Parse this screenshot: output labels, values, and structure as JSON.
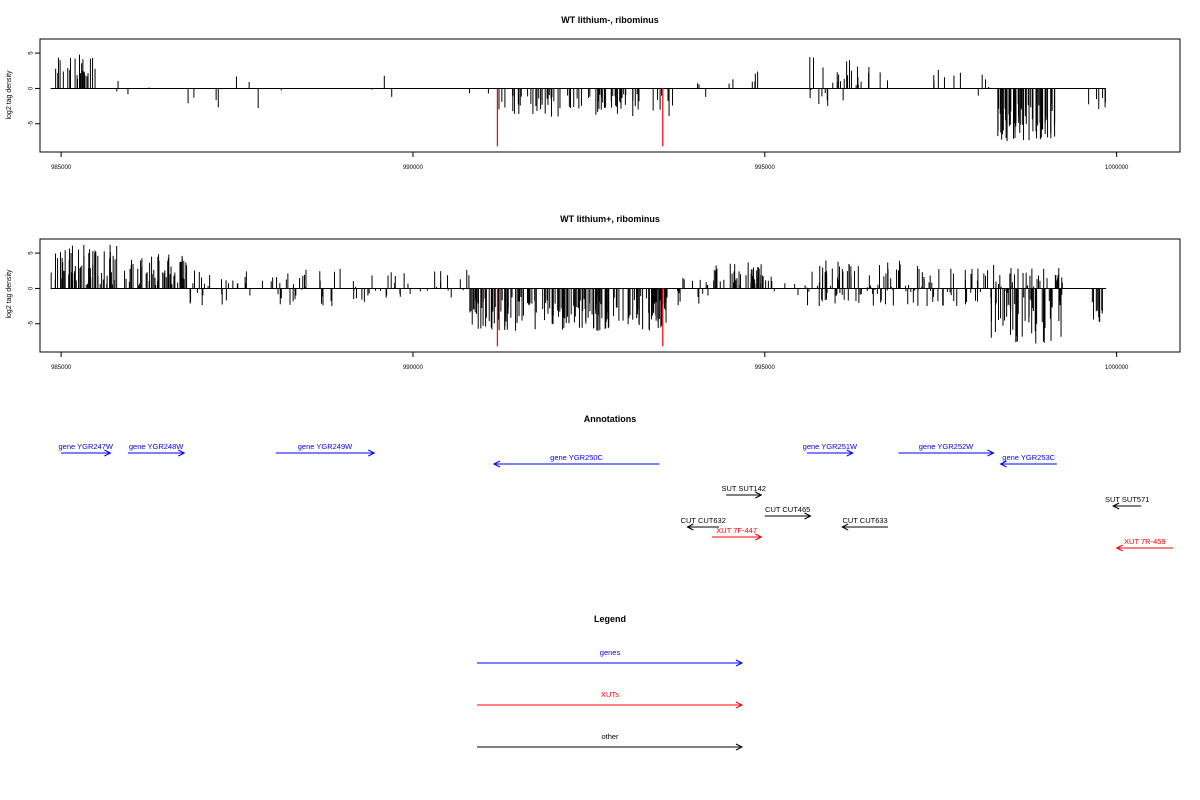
{
  "colors": {
    "genes": "#0000ff",
    "XUTs": "#ff0000",
    "other": "#000000",
    "bar": "#000000",
    "highlight": "#ff0000"
  },
  "chart_data": [
    {
      "type": "bar",
      "title": "WT lithium-, ribominus",
      "ylabel": "log2 tag density",
      "xlim": [
        984700,
        1000900
      ],
      "ylim": [
        -9,
        7
      ],
      "yticks": [
        5,
        0,
        -5
      ],
      "xticks": [
        985000,
        990000,
        995000,
        1000000
      ],
      "highlight_positions": [
        991200,
        993550
      ],
      "regions": [
        {
          "start": 984850,
          "end": 985500,
          "min": 1.0,
          "max": 4.8,
          "count": 26
        },
        {
          "start": 985600,
          "end": 986100,
          "min": -1.5,
          "max": 1.2,
          "count": 3
        },
        {
          "start": 986200,
          "end": 988600,
          "min": -2.8,
          "max": 2.5,
          "count": 10
        },
        {
          "start": 989300,
          "end": 989900,
          "min": -2.5,
          "max": 2.0,
          "count": 3
        },
        {
          "start": 990800,
          "end": 991100,
          "min": -1.2,
          "max": -0.4,
          "count": 2
        },
        {
          "start": 991200,
          "end": 993700,
          "min": -4.0,
          "max": -0.8,
          "count": 80
        },
        {
          "start": 994000,
          "end": 994200,
          "min": -2.0,
          "max": 1.0,
          "count": 3
        },
        {
          "start": 994400,
          "end": 995000,
          "min": 0.5,
          "max": 2.8,
          "count": 6
        },
        {
          "start": 995600,
          "end": 996500,
          "min": -2.5,
          "max": 4.5,
          "count": 28
        },
        {
          "start": 996600,
          "end": 997800,
          "min": 0.8,
          "max": 3.0,
          "count": 8
        },
        {
          "start": 997900,
          "end": 998200,
          "min": -1.2,
          "max": 2.0,
          "count": 5
        },
        {
          "start": 998300,
          "end": 999150,
          "min": -7.5,
          "max": -2.0,
          "count": 65
        },
        {
          "start": 999600,
          "end": 999850,
          "min": -3.0,
          "max": -1.0,
          "count": 6
        }
      ]
    },
    {
      "type": "bar",
      "title": "WT lithium+, ribominus",
      "ylabel": "log2 tag density",
      "xlim": [
        984700,
        1000900
      ],
      "ylim": [
        -9,
        7
      ],
      "yticks": [
        5,
        0,
        -5
      ],
      "xticks": [
        985000,
        990000,
        995000,
        1000000
      ],
      "highlight_positions": [
        991200,
        993550
      ],
      "regions": [
        {
          "start": 984850,
          "end": 985800,
          "min": 0.5,
          "max": 6.2,
          "count": 60
        },
        {
          "start": 985900,
          "end": 986800,
          "min": 0.3,
          "max": 5.0,
          "count": 55
        },
        {
          "start": 986800,
          "end": 989600,
          "min": -2.5,
          "max": 3.0,
          "count": 70
        },
        {
          "start": 989600,
          "end": 990800,
          "min": -1.5,
          "max": 2.8,
          "count": 25
        },
        {
          "start": 990800,
          "end": 993700,
          "min": -6.0,
          "max": -1.0,
          "count": 190
        },
        {
          "start": 993700,
          "end": 994200,
          "min": -2.5,
          "max": 1.5,
          "count": 15
        },
        {
          "start": 994200,
          "end": 995100,
          "min": 0.5,
          "max": 3.8,
          "count": 45
        },
        {
          "start": 995100,
          "end": 995600,
          "min": -1.0,
          "max": 1.0,
          "count": 6
        },
        {
          "start": 995600,
          "end": 997200,
          "min": -2.5,
          "max": 4.0,
          "count": 90
        },
        {
          "start": 997200,
          "end": 998200,
          "min": -2.5,
          "max": 3.0,
          "count": 40
        },
        {
          "start": 998200,
          "end": 999250,
          "min": -8.0,
          "max": 3.5,
          "count": 95
        },
        {
          "start": 999650,
          "end": 999850,
          "min": -4.8,
          "max": -1.5,
          "count": 10
        }
      ]
    },
    {
      "type": "diagram",
      "title": "Annotations",
      "features": [
        {
          "label": "gene YGR247W",
          "start": 985000,
          "end": 985700,
          "strand": "+",
          "class": "genes",
          "row": 0
        },
        {
          "label": "gene YGR248W",
          "start": 985950,
          "end": 986750,
          "strand": "+",
          "class": "genes",
          "row": 0
        },
        {
          "label": "gene YGR249W",
          "start": 988050,
          "end": 989450,
          "strand": "+",
          "class": "genes",
          "row": 0
        },
        {
          "label": "gene YGR250C",
          "start": 991150,
          "end": 993500,
          "strand": "-",
          "class": "genes",
          "row": 1
        },
        {
          "label": "gene YGR251W",
          "start": 995600,
          "end": 996250,
          "strand": "+",
          "class": "genes",
          "row": 0
        },
        {
          "label": "gene YGR252W",
          "start": 996900,
          "end": 998250,
          "strand": "+",
          "class": "genes",
          "row": 0
        },
        {
          "label": "gene YGR253C",
          "start": 998350,
          "end": 999150,
          "strand": "-",
          "class": "genes",
          "row": 1
        },
        {
          "label": "SUT SUT142",
          "start": 994450,
          "end": 994950,
          "strand": "+",
          "class": "other",
          "row": 2
        },
        {
          "label": "SUT SUT571",
          "start": 999950,
          "end": 1000350,
          "strand": "-",
          "class": "other",
          "row": 3
        },
        {
          "label": "CUT CUT465",
          "start": 995000,
          "end": 995650,
          "strand": "+",
          "class": "other",
          "row": 4
        },
        {
          "label": "CUT CUT632",
          "start": 993900,
          "end": 994350,
          "strand": "-",
          "class": "other",
          "row": 5
        },
        {
          "label": "CUT CUT633",
          "start": 996100,
          "end": 996750,
          "strand": "-",
          "class": "other",
          "row": 5
        },
        {
          "label": "XUT 7F-447",
          "start": 994250,
          "end": 994950,
          "strand": "+",
          "class": "XUTs",
          "row": 6
        },
        {
          "label": "XUT 7R-459",
          "start": 1000000,
          "end": 1000800,
          "strand": "-",
          "class": "XUTs",
          "row": 7
        }
      ]
    }
  ],
  "legend": {
    "title": "Legend",
    "items": [
      {
        "label": "genes",
        "class": "genes"
      },
      {
        "label": "XUTs",
        "class": "XUTs"
      },
      {
        "label": "other",
        "class": "other"
      }
    ]
  }
}
